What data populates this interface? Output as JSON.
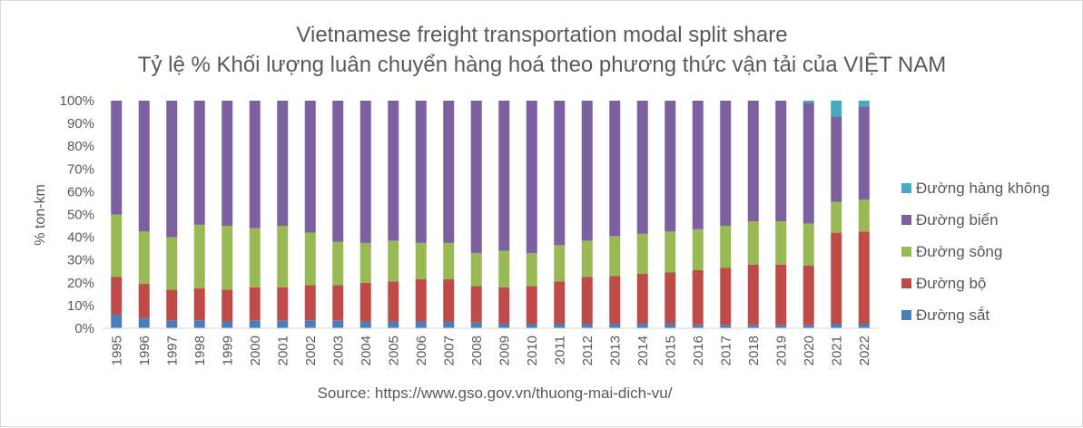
{
  "chart_data": {
    "type": "bar",
    "stacked": true,
    "title": "Vietnamese freight transportation modal split share",
    "subtitle": "Tỷ lệ % Khối lượng luân chuyển hàng hoá theo phương thức vận tải của VIỆT NAM",
    "ylabel": "% ton-km",
    "xlabel": "",
    "ylim": [
      0,
      100
    ],
    "ytick_labels": [
      "0%",
      "10%",
      "20%",
      "30%",
      "40%",
      "50%",
      "60%",
      "70%",
      "80%",
      "90%",
      "100%"
    ],
    "grid": false,
    "legend_position": "right",
    "source": "Source: https://www.gso.gov.vn/thuong-mai-dich-vu/",
    "categories": [
      "1995",
      "1996",
      "1997",
      "1998",
      "1999",
      "2000",
      "2001",
      "2002",
      "2003",
      "2004",
      "2005",
      "2006",
      "2007",
      "2008",
      "2009",
      "2010",
      "2011",
      "2012",
      "2013",
      "2014",
      "2015",
      "2016",
      "2017",
      "2018",
      "2019",
      "2020",
      "2021",
      "2022"
    ],
    "series": [
      {
        "name": "Đường sắt",
        "color": "#4a7ebb",
        "values": [
          6,
          4.5,
          3.5,
          3.5,
          3,
          3.5,
          3.5,
          3.5,
          3.5,
          3,
          3,
          3,
          3,
          2.5,
          2,
          2,
          2,
          2,
          2,
          2,
          2,
          1.5,
          1.5,
          1.5,
          1.5,
          1.5,
          2,
          2
        ]
      },
      {
        "name": "Đường bộ",
        "color": "#be4b48",
        "values": [
          16.5,
          15,
          13.5,
          14,
          14,
          14.5,
          14.5,
          15.5,
          15.5,
          17,
          17.5,
          18.5,
          18.5,
          16,
          16,
          16.5,
          18.5,
          20.5,
          21,
          22,
          22.5,
          24,
          25,
          26.5,
          26.5,
          26,
          40,
          40.5
        ]
      },
      {
        "name": "Đường sông",
        "color": "#98b954",
        "values": [
          27.5,
          23,
          23,
          28,
          28,
          26,
          27,
          23,
          19,
          17.5,
          18,
          16,
          16,
          14.5,
          16,
          14.5,
          16,
          16,
          17.5,
          17.5,
          18,
          18,
          18.5,
          19,
          19,
          18.5,
          13.5,
          14
        ]
      },
      {
        "name": "Đường biển",
        "color": "#7d60a0",
        "values": [
          50,
          57.5,
          60,
          54.5,
          55,
          56,
          55,
          58,
          62,
          62.5,
          61.5,
          62.5,
          62.5,
          67,
          66,
          67,
          63.5,
          61.5,
          59.5,
          58.5,
          57.5,
          56.5,
          55,
          53,
          53,
          53,
          37.5,
          41
        ]
      },
      {
        "name": "Đường hàng không",
        "color": "#46aac5",
        "values": [
          0,
          0,
          0,
          0,
          0,
          0,
          0,
          0,
          0,
          0,
          0,
          0,
          0,
          0,
          0,
          0,
          0,
          0,
          0,
          0,
          0,
          0,
          0,
          0,
          0,
          1,
          7,
          2.5
        ]
      }
    ]
  }
}
